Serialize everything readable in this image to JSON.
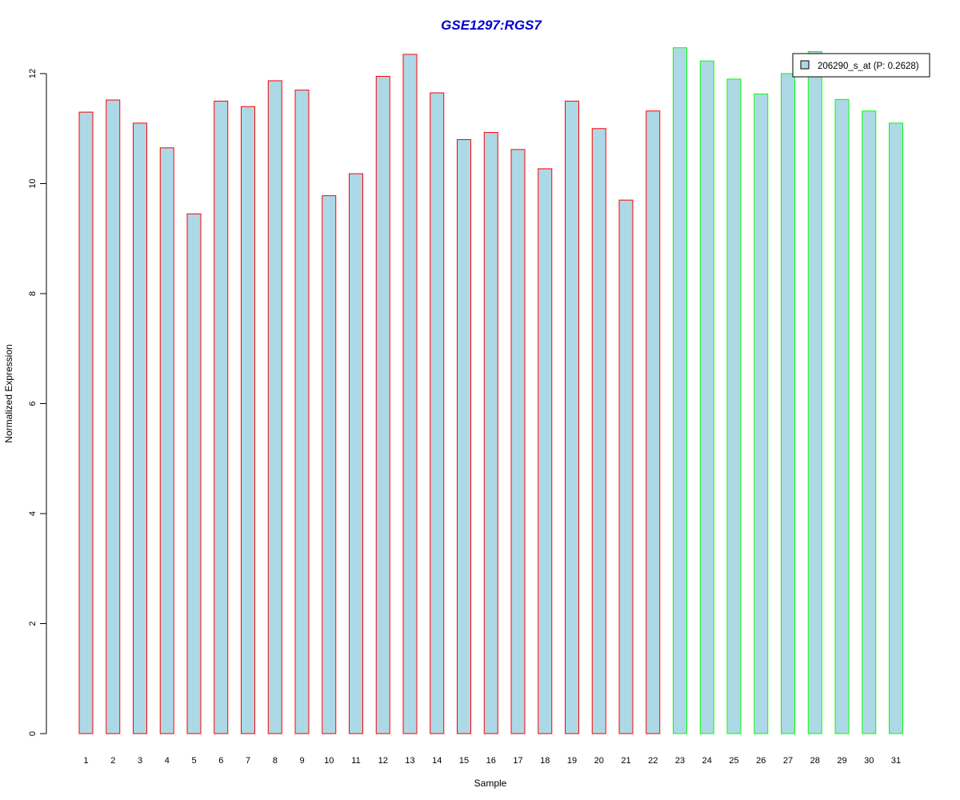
{
  "chart_data": {
    "type": "bar",
    "title": "GSE1297:RGS7",
    "xlabel": "Sample",
    "ylabel": "Normalized Expression",
    "categories": [
      "1",
      "2",
      "3",
      "4",
      "5",
      "6",
      "7",
      "8",
      "9",
      "10",
      "11",
      "12",
      "13",
      "14",
      "15",
      "16",
      "17",
      "18",
      "19",
      "20",
      "21",
      "22",
      "23",
      "24",
      "25",
      "26",
      "27",
      "28",
      "29",
      "30",
      "31"
    ],
    "series": [
      {
        "name": "206290_s_at (P: 0.2628)",
        "values": [
          11.3,
          11.52,
          11.1,
          10.65,
          9.45,
          11.5,
          11.4,
          11.87,
          11.7,
          9.78,
          10.18,
          11.95,
          12.35,
          11.65,
          10.8,
          10.93,
          10.62,
          10.27,
          11.5,
          11.0,
          9.7,
          11.32,
          12.47,
          12.23,
          11.9,
          11.63,
          12.0,
          12.4,
          11.53,
          11.32,
          11.1
        ]
      }
    ],
    "groups": [
      {
        "samples": "1-22",
        "border_color": "#ff0000"
      },
      {
        "samples": "23-31",
        "border_color": "#00ff00"
      }
    ],
    "yticks": [
      0,
      2,
      4,
      6,
      8,
      10,
      12
    ],
    "ylim": [
      0,
      12.5
    ],
    "bar_fill": "#add8e6",
    "title_color": "#0000cd",
    "grid": false,
    "legend_position": "top-right"
  }
}
